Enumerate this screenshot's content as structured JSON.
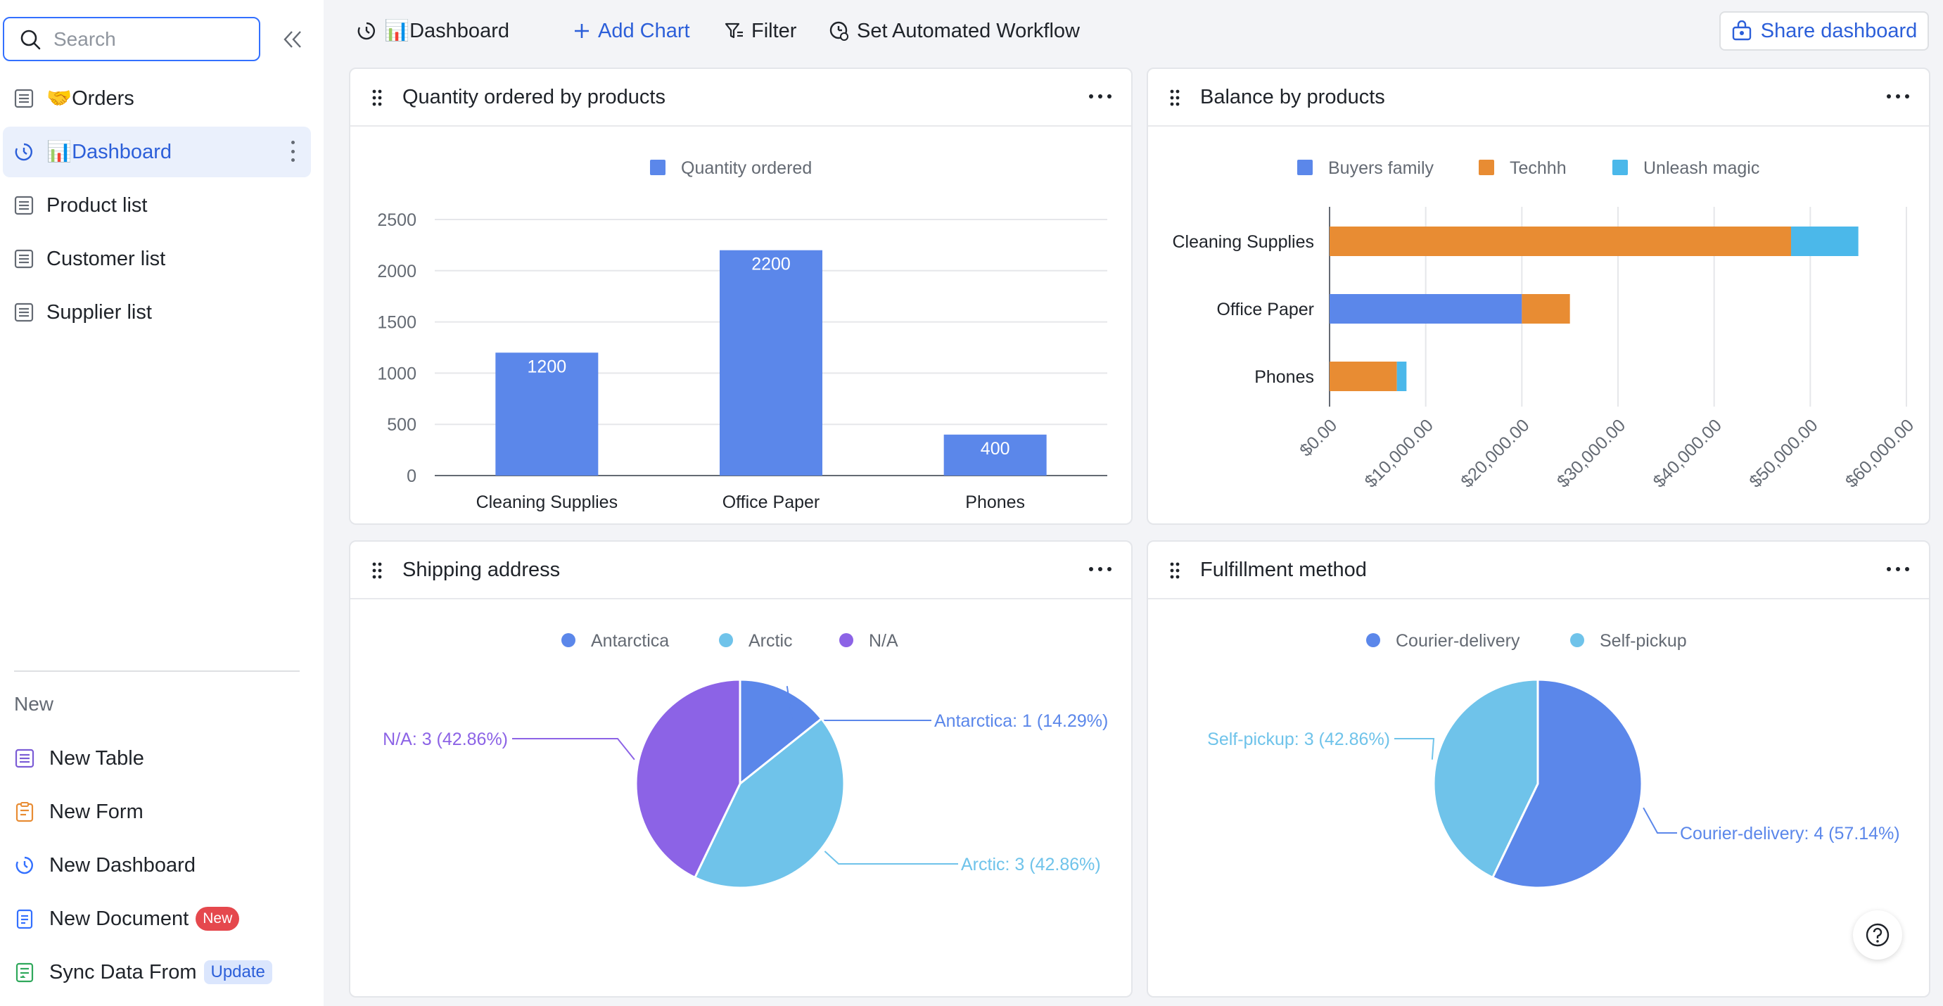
{
  "sidebar": {
    "search_placeholder": "Search",
    "items": [
      {
        "label": "🤝Orders",
        "icon": "table-icon"
      },
      {
        "label": "📊Dashboard",
        "icon": "dashboard-icon",
        "active": true
      },
      {
        "label": "Product list",
        "icon": "table-icon"
      },
      {
        "label": "Customer list",
        "icon": "table-icon"
      },
      {
        "label": "Supplier list",
        "icon": "table-icon"
      }
    ],
    "new_section_title": "New",
    "new_items": [
      {
        "label": "New Table",
        "icon": "table-icon"
      },
      {
        "label": "New Form",
        "icon": "form-icon"
      },
      {
        "label": "New Dashboard",
        "icon": "dashboard-icon"
      },
      {
        "label": "New Document",
        "icon": "document-icon",
        "badge": "New"
      },
      {
        "label": "Sync Data From",
        "icon": "sync-icon",
        "badge": "Update"
      }
    ]
  },
  "topbar": {
    "title": "📊Dashboard",
    "add_chart": "Add Chart",
    "filter": "Filter",
    "workflow": "Set Automated Workflow",
    "share": "Share dashboard"
  },
  "colors": {
    "accent": "#2c5fd9",
    "blue": "#5b87ea",
    "orange": "#e88c33",
    "lightblue": "#4bb8ea",
    "purple": "#8c63e6",
    "skyblue": "#6fc3ea"
  },
  "cards": {
    "qty": {
      "title": "Quantity ordered by products"
    },
    "balance": {
      "title": "Balance by products"
    },
    "shipping": {
      "title": "Shipping address"
    },
    "fulfill": {
      "title": "Fulfillment method"
    }
  },
  "chart_data": [
    {
      "type": "bar",
      "title": "Quantity ordered by products",
      "categories": [
        "Cleaning Supplies",
        "Office Paper",
        "Phones"
      ],
      "series": [
        {
          "name": "Quantity ordered",
          "values": [
            1200,
            2200,
            400
          ]
        }
      ],
      "ylim": [
        0,
        2500
      ],
      "yticks": [
        "0",
        "500",
        "1000",
        "1500",
        "2000",
        "2500"
      ],
      "data_labels": [
        "1200",
        "2200",
        "400"
      ],
      "legend": "top"
    },
    {
      "type": "bar",
      "orientation": "horizontal-stacked",
      "title": "Balance by products",
      "categories": [
        "Cleaning Supplies",
        "Office Paper",
        "Phones"
      ],
      "series": [
        {
          "name": "Buyers family",
          "values": [
            0,
            20000,
            0
          ]
        },
        {
          "name": "Techhh",
          "values": [
            48000,
            5000,
            7000
          ]
        },
        {
          "name": "Unleash magic",
          "values": [
            7000,
            0,
            1000
          ]
        }
      ],
      "xlim": [
        0,
        60000
      ],
      "xticks": [
        "$0.00",
        "$10,000.00",
        "$20,000.00",
        "$30,000.00",
        "$40,000.00",
        "$50,000.00",
        "$60,000.00"
      ],
      "legend": "top"
    },
    {
      "type": "pie",
      "title": "Shipping address",
      "labels": [
        "Antarctica",
        "Arctic",
        "N/A"
      ],
      "values": [
        1,
        3,
        3
      ],
      "slice_labels": [
        "Antarctica: 1 (14.29%)",
        "Arctic: 3 (42.86%)",
        "N/A: 3 (42.86%)"
      ],
      "legend": "top"
    },
    {
      "type": "pie",
      "title": "Fulfillment method",
      "labels": [
        "Courier-delivery",
        "Self-pickup"
      ],
      "values": [
        4,
        3
      ],
      "slice_labels": [
        "Courier-delivery: 4 (57.14%)",
        "Self-pickup: 3 (42.86%)"
      ],
      "legend": "top"
    }
  ]
}
